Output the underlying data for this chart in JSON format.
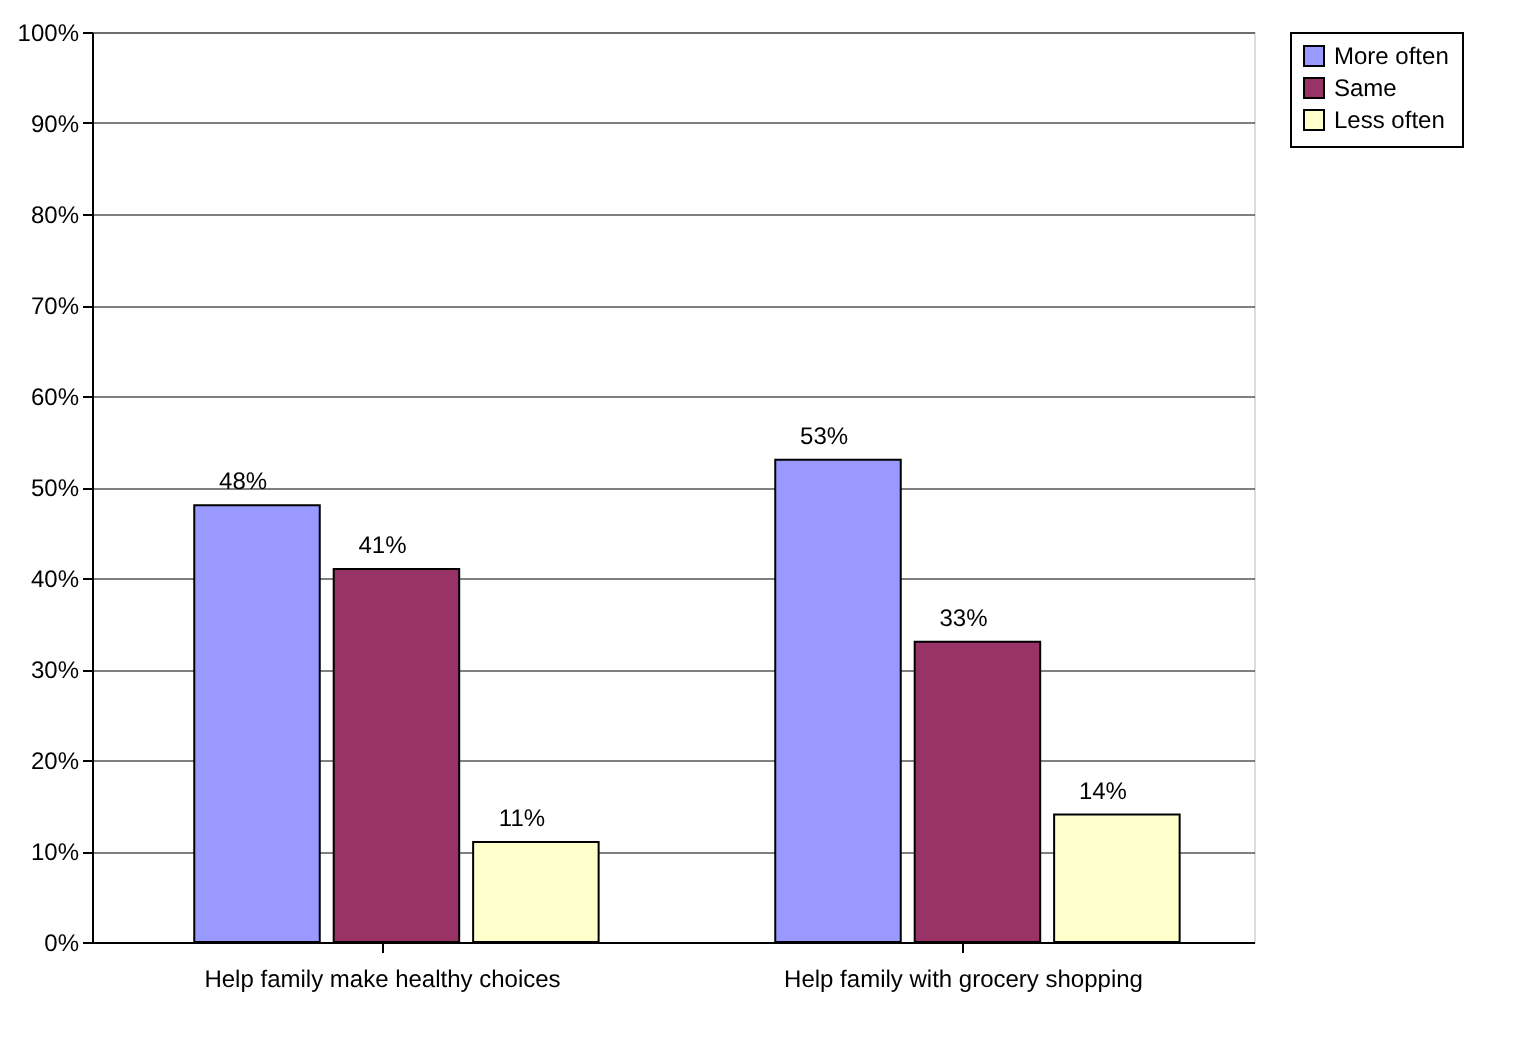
{
  "chart_data": {
    "type": "bar",
    "categories": [
      "Help family make healthy choices",
      "Help family with grocery shopping"
    ],
    "series": [
      {
        "name": "More often",
        "color": "#9999ff",
        "values": [
          48,
          53
        ],
        "value_labels": [
          "48%",
          "53%"
        ]
      },
      {
        "name": "Same",
        "color": "#993366",
        "values": [
          41,
          33
        ],
        "value_labels": [
          "41%",
          "33%"
        ]
      },
      {
        "name": "Less often",
        "color": "#ffffcc",
        "values": [
          11,
          14
        ],
        "value_labels": [
          "11%",
          "14%"
        ]
      }
    ],
    "ylim": [
      0,
      100
    ],
    "yticks": [
      {
        "value": 0,
        "label": "0%"
      },
      {
        "value": 10,
        "label": "10%"
      },
      {
        "value": 20,
        "label": "20%"
      },
      {
        "value": 30,
        "label": "30%"
      },
      {
        "value": 40,
        "label": "40%"
      },
      {
        "value": 50,
        "label": "50%"
      },
      {
        "value": 60,
        "label": "60%"
      },
      {
        "value": 70,
        "label": "70%"
      },
      {
        "value": 80,
        "label": "80%"
      },
      {
        "value": 90,
        "label": "90%"
      },
      {
        "value": 100,
        "label": "100%"
      }
    ],
    "grid": "y",
    "legend": "right"
  }
}
